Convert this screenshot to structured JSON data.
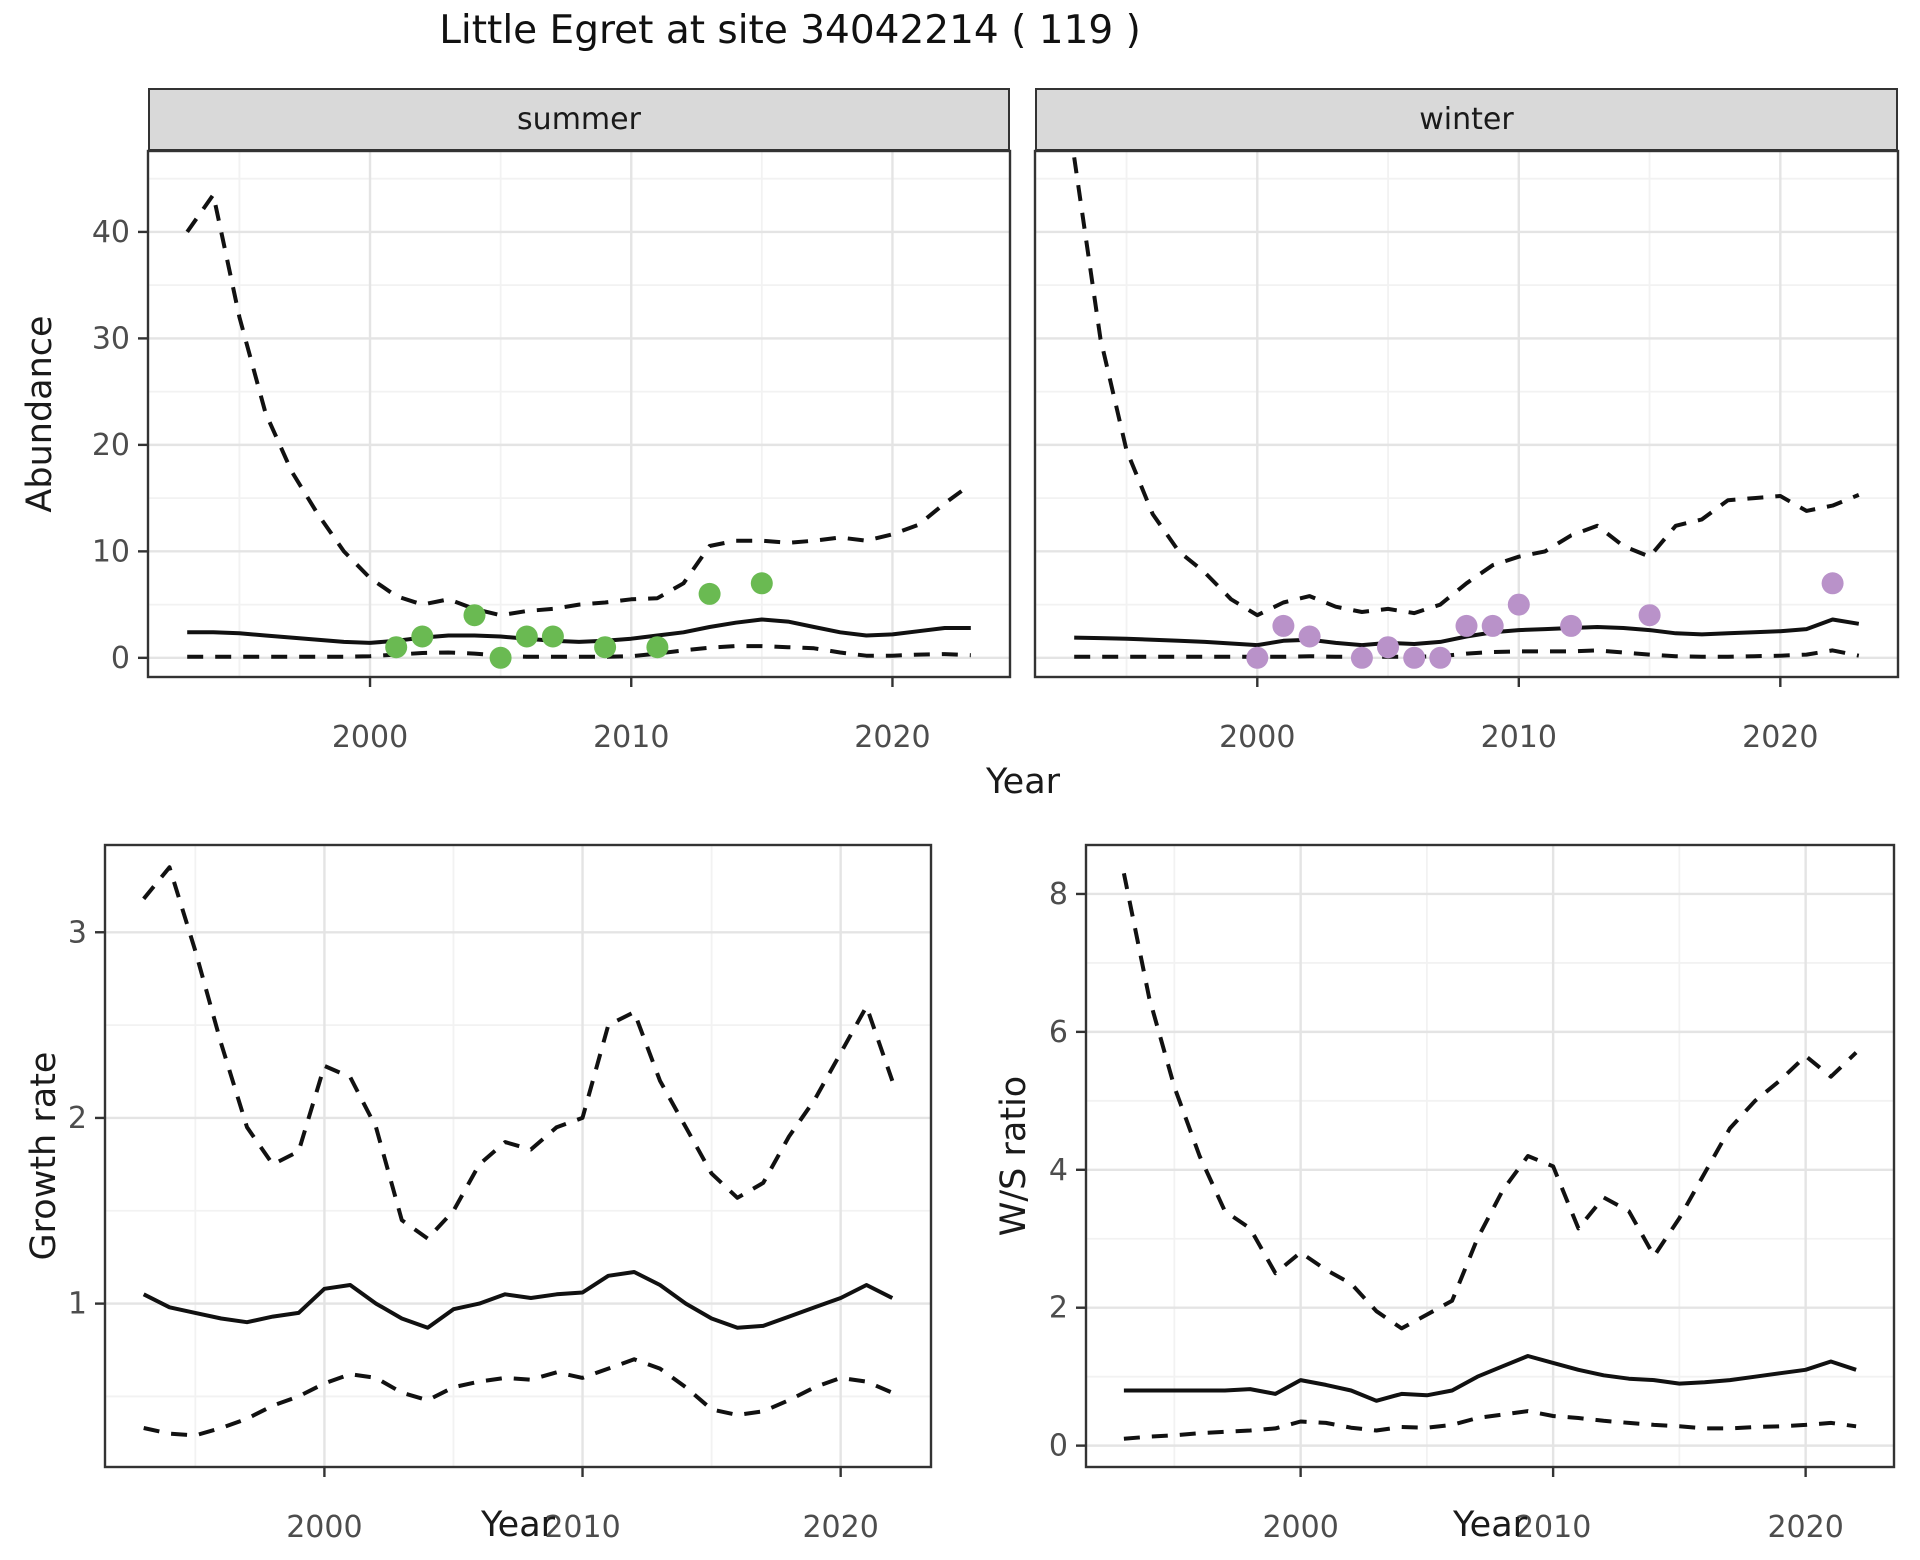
{
  "title": "Little Egret at site 34042214 ( 119 )",
  "colors": {
    "summer_point": "#6ABA52",
    "winter_point": "#B992C9",
    "line": "#111111",
    "strip_bg": "#D9D9D9",
    "grid_major": "#E4E4E4",
    "grid_minor": "#F2F2F2",
    "axis_text": "#4D4D4D",
    "border": "#333333",
    "background": "#FFFFFF"
  },
  "labels": {
    "abundance_ylabel": "Abundance",
    "top_xlabel": "Year",
    "growth_ylabel": "Growth rate",
    "growth_xlabel": "Year",
    "ws_ylabel": "W/S ratio",
    "ws_xlabel": "Year",
    "facets": [
      "summer",
      "winter"
    ]
  },
  "chart_data": [
    {
      "id": "summer",
      "type": "line",
      "facet": "summer",
      "ylabel": "Abundance",
      "xlabel": "Year",
      "legend": "none",
      "grid": true,
      "x_domain": [
        1991.5,
        2024.5
      ],
      "y_domain": [
        -1.8,
        47.6
      ],
      "x_ticks": [
        2000,
        2010,
        2020
      ],
      "x_minor": [
        1995,
        2005,
        2015
      ],
      "y_ticks": [
        0,
        10,
        20,
        30,
        40
      ],
      "y_minor": [
        5,
        15,
        25,
        35,
        45
      ],
      "x": [
        1993,
        1994,
        1995,
        1996,
        1997,
        1998,
        1999,
        2000,
        2001,
        2002,
        2003,
        2004,
        2005,
        2006,
        2007,
        2008,
        2009,
        2010,
        2011,
        2012,
        2013,
        2014,
        2015,
        2016,
        2017,
        2018,
        2019,
        2020,
        2021,
        2022,
        2023
      ],
      "series": [
        {
          "name": "mean",
          "style": "solid",
          "values": [
            2.4,
            2.4,
            2.3,
            2.1,
            1.9,
            1.7,
            1.5,
            1.4,
            1.6,
            1.9,
            2.1,
            2.1,
            2.0,
            1.8,
            1.6,
            1.5,
            1.6,
            1.8,
            2.1,
            2.4,
            2.9,
            3.3,
            3.6,
            3.4,
            2.9,
            2.4,
            2.1,
            2.2,
            2.5,
            2.8,
            2.8
          ]
        },
        {
          "name": "ci_upper",
          "style": "dashed",
          "values": [
            40,
            43.5,
            32,
            23,
            17.5,
            13.5,
            10,
            7.5,
            5.8,
            5.0,
            5.5,
            4.6,
            4.0,
            4.4,
            4.6,
            5.0,
            5.2,
            5.5,
            5.6,
            7.0,
            10.5,
            11.0,
            11.0,
            10.8,
            11.0,
            11.3,
            11.0,
            11.6,
            12.5,
            14.5,
            16.3
          ]
        },
        {
          "name": "ci_lower",
          "style": "dashed",
          "values": [
            0.1,
            0.1,
            0.1,
            0.1,
            0.1,
            0.1,
            0.1,
            0.15,
            0.3,
            0.45,
            0.5,
            0.4,
            0.2,
            0.1,
            0.1,
            0.1,
            0.1,
            0.15,
            0.4,
            0.7,
            0.95,
            1.1,
            1.1,
            1.0,
            0.9,
            0.5,
            0.2,
            0.2,
            0.3,
            0.35,
            0.25
          ]
        }
      ],
      "points": [
        [
          2001,
          1
        ],
        [
          2002,
          2
        ],
        [
          2004,
          4
        ],
        [
          2005,
          0
        ],
        [
          2006,
          2
        ],
        [
          2007,
          2
        ],
        [
          2009,
          1
        ],
        [
          2011,
          1
        ],
        [
          2013,
          6
        ],
        [
          2015,
          7
        ]
      ],
      "point_color_key": "summer_point"
    },
    {
      "id": "winter",
      "type": "line",
      "facet": "winter",
      "ylabel": "Abundance",
      "xlabel": "Year",
      "legend": "none",
      "grid": true,
      "x_domain": [
        1991.5,
        2024.5
      ],
      "y_domain": [
        -1.8,
        47.6
      ],
      "x_ticks": [
        2000,
        2010,
        2020
      ],
      "x_minor": [
        1995,
        2005,
        2015
      ],
      "y_ticks": [
        0,
        10,
        20,
        30,
        40
      ],
      "y_minor": [
        5,
        15,
        25,
        35,
        45
      ],
      "x": [
        1993,
        1994,
        1995,
        1996,
        1997,
        1998,
        1999,
        2000,
        2001,
        2002,
        2003,
        2004,
        2005,
        2006,
        2007,
        2008,
        2009,
        2010,
        2011,
        2012,
        2013,
        2014,
        2015,
        2016,
        2017,
        2018,
        2019,
        2020,
        2021,
        2022,
        2023
      ],
      "series": [
        {
          "name": "mean",
          "style": "solid",
          "values": [
            1.9,
            1.85,
            1.8,
            1.7,
            1.6,
            1.5,
            1.35,
            1.2,
            1.6,
            1.7,
            1.4,
            1.2,
            1.4,
            1.3,
            1.5,
            2.0,
            2.4,
            2.6,
            2.7,
            2.8,
            2.9,
            2.8,
            2.6,
            2.3,
            2.2,
            2.3,
            2.4,
            2.5,
            2.7,
            3.6,
            3.2
          ]
        },
        {
          "name": "ci_upper",
          "style": "dashed",
          "values": [
            47,
            30,
            19.5,
            13.5,
            10,
            8,
            5.5,
            4.0,
            5.2,
            5.8,
            4.8,
            4.3,
            4.6,
            4.2,
            5.0,
            7.0,
            8.7,
            9.5,
            10.0,
            11.5,
            12.4,
            10.5,
            9.5,
            12.4,
            13.0,
            14.8,
            15.0,
            15.2,
            13.8,
            14.3,
            15.3
          ]
        },
        {
          "name": "ci_lower",
          "style": "dashed",
          "values": [
            0.1,
            0.1,
            0.1,
            0.1,
            0.1,
            0.1,
            0.1,
            0.1,
            0.1,
            0.15,
            0.1,
            0.1,
            0.1,
            0.1,
            0.15,
            0.4,
            0.55,
            0.6,
            0.6,
            0.6,
            0.7,
            0.5,
            0.3,
            0.15,
            0.1,
            0.1,
            0.15,
            0.2,
            0.3,
            0.7,
            0.2
          ]
        }
      ],
      "points": [
        [
          2000,
          0
        ],
        [
          2001,
          3
        ],
        [
          2002,
          2
        ],
        [
          2004,
          0
        ],
        [
          2005,
          1
        ],
        [
          2006,
          0
        ],
        [
          2007,
          0
        ],
        [
          2008,
          3
        ],
        [
          2009,
          3
        ],
        [
          2010,
          5
        ],
        [
          2012,
          3
        ],
        [
          2015,
          4
        ],
        [
          2022,
          7
        ]
      ],
      "point_color_key": "winter_point"
    },
    {
      "id": "growth",
      "type": "line",
      "title": "",
      "ylabel": "Growth rate",
      "xlabel": "Year",
      "legend": "none",
      "grid": true,
      "x_domain": [
        1991.5,
        2023.5
      ],
      "y_domain": [
        0.12,
        3.47
      ],
      "x_ticks": [
        2000,
        2010,
        2020
      ],
      "x_minor": [
        1995,
        2005,
        2015
      ],
      "y_ticks": [
        1,
        2,
        3
      ],
      "y_minor": [
        0.5,
        1.5,
        2.5
      ],
      "x": [
        1993,
        1994,
        1995,
        1996,
        1997,
        1998,
        1999,
        2000,
        2001,
        2002,
        2003,
        2004,
        2005,
        2006,
        2007,
        2008,
        2009,
        2010,
        2011,
        2012,
        2013,
        2014,
        2015,
        2016,
        2017,
        2018,
        2019,
        2020,
        2021,
        2022
      ],
      "series": [
        {
          "name": "mean",
          "style": "solid",
          "values": [
            1.05,
            0.98,
            0.95,
            0.92,
            0.9,
            0.93,
            0.95,
            1.08,
            1.1,
            1.0,
            0.92,
            0.87,
            0.97,
            1.0,
            1.05,
            1.03,
            1.05,
            1.06,
            1.15,
            1.17,
            1.1,
            1.0,
            0.92,
            0.87,
            0.88,
            0.93,
            0.98,
            1.03,
            1.1,
            1.03
          ]
        },
        {
          "name": "ci_upper",
          "style": "dashed",
          "values": [
            3.18,
            3.35,
            2.9,
            2.4,
            1.95,
            1.75,
            1.82,
            2.28,
            2.22,
            1.95,
            1.45,
            1.35,
            1.5,
            1.75,
            1.87,
            1.83,
            1.95,
            2.0,
            2.5,
            2.57,
            2.2,
            1.95,
            1.7,
            1.57,
            1.65,
            1.9,
            2.1,
            2.35,
            2.6,
            2.2
          ]
        },
        {
          "name": "ci_lower",
          "style": "dashed",
          "values": [
            0.33,
            0.3,
            0.29,
            0.33,
            0.38,
            0.45,
            0.5,
            0.57,
            0.62,
            0.6,
            0.52,
            0.48,
            0.55,
            0.58,
            0.6,
            0.59,
            0.63,
            0.6,
            0.65,
            0.7,
            0.65,
            0.55,
            0.43,
            0.4,
            0.42,
            0.48,
            0.55,
            0.6,
            0.58,
            0.52
          ]
        }
      ],
      "points": [],
      "point_color_key": null
    },
    {
      "id": "ws",
      "type": "line",
      "title": "",
      "ylabel": "W/S ratio",
      "xlabel": "Year",
      "legend": "none",
      "grid": true,
      "x_domain": [
        1991.5,
        2023.5
      ],
      "y_domain": [
        -0.31,
        8.71
      ],
      "x_ticks": [
        2000,
        2010,
        2020
      ],
      "x_minor": [
        1995,
        2005,
        2015
      ],
      "y_ticks": [
        0,
        2,
        4,
        6,
        8
      ],
      "y_minor": [
        1,
        3,
        5,
        7
      ],
      "x": [
        1993,
        1994,
        1995,
        1996,
        1997,
        1998,
        1999,
        2000,
        2001,
        2002,
        2003,
        2004,
        2005,
        2006,
        2007,
        2008,
        2009,
        2010,
        2011,
        2012,
        2013,
        2014,
        2015,
        2016,
        2017,
        2018,
        2019,
        2020,
        2021,
        2022
      ],
      "series": [
        {
          "name": "mean",
          "style": "solid",
          "values": [
            0.8,
            0.8,
            0.8,
            0.8,
            0.8,
            0.82,
            0.75,
            0.95,
            0.88,
            0.8,
            0.65,
            0.75,
            0.73,
            0.8,
            1.0,
            1.15,
            1.3,
            1.2,
            1.1,
            1.02,
            0.97,
            0.95,
            0.9,
            0.92,
            0.95,
            1.0,
            1.05,
            1.1,
            1.22,
            1.1
          ]
        },
        {
          "name": "ci_upper",
          "style": "dashed",
          "values": [
            8.3,
            6.5,
            5.2,
            4.2,
            3.4,
            3.15,
            2.5,
            2.8,
            2.55,
            2.35,
            1.95,
            1.7,
            1.9,
            2.1,
            3.0,
            3.7,
            4.2,
            4.05,
            3.15,
            3.6,
            3.4,
            2.75,
            3.3,
            3.95,
            4.6,
            5.0,
            5.3,
            5.65,
            5.35,
            5.7
          ]
        },
        {
          "name": "ci_lower",
          "style": "dashed",
          "values": [
            0.1,
            0.13,
            0.15,
            0.18,
            0.2,
            0.22,
            0.25,
            0.35,
            0.33,
            0.26,
            0.22,
            0.27,
            0.26,
            0.3,
            0.4,
            0.45,
            0.5,
            0.43,
            0.4,
            0.36,
            0.33,
            0.3,
            0.28,
            0.25,
            0.25,
            0.27,
            0.28,
            0.3,
            0.33,
            0.28
          ]
        }
      ],
      "points": [],
      "point_color_key": null
    }
  ]
}
